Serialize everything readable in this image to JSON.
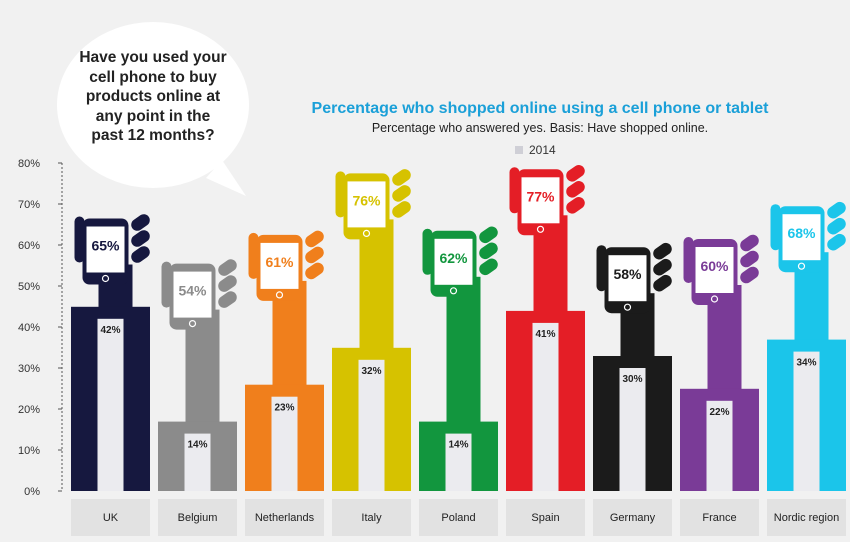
{
  "question": "Have you used your cell phone to buy products online at any point in the past 12 months?",
  "colors": {
    "UK": "#16183f",
    "Belgium": "#8b8b8b",
    "Netherlands": "#f07f1c",
    "Italy": "#d6c200",
    "Poland": "#12963e",
    "Spain": "#e41e26",
    "Germany": "#1b1b1b",
    "France": "#7a3b97",
    "Nordic region": "#1bc5ea",
    "title": "#1ba0d8",
    "inner_bar": "#ebebef"
  },
  "chart_data": {
    "type": "bar",
    "title": "Percentage who shopped online using a cell phone or tablet",
    "subtitle": "Percentage who answered yes. Basis: Have shopped online.",
    "ylim": [
      0,
      80
    ],
    "y_ticks": [
      "0%",
      "10%",
      "20%",
      "30%",
      "40%",
      "50%",
      "60%",
      "70%",
      "80%"
    ],
    "legend": "2014",
    "categories": [
      "UK",
      "Belgium",
      "Netherlands",
      "Italy",
      "Poland",
      "Spain",
      "Germany",
      "France",
      "Nordic region"
    ],
    "series": [
      {
        "values": [
          65,
          54,
          61,
          76,
          62,
          77,
          58,
          60,
          68
        ],
        "labels": [
          "65%",
          "54%",
          "61%",
          "76%",
          "62%",
          "77%",
          "58%",
          "60%",
          "68%"
        ]
      },
      {
        "name": "2014",
        "values": [
          42,
          14,
          23,
          32,
          14,
          41,
          30,
          22,
          34
        ],
        "labels": [
          "42%",
          "14%",
          "23%",
          "32%",
          "14%",
          "41%",
          "30%",
          "22%",
          "34%"
        ]
      }
    ]
  }
}
